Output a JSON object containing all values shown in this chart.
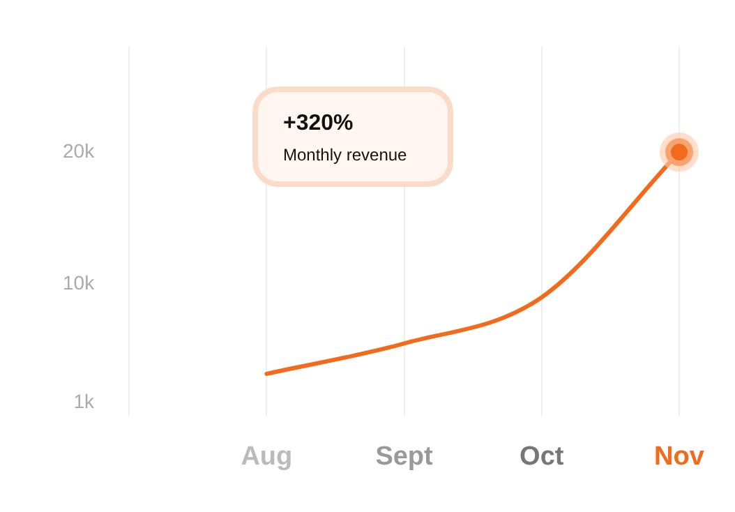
{
  "chart_data": {
    "type": "line",
    "categories": [
      null,
      "Aug",
      "Sept",
      "Oct",
      "Nov"
    ],
    "series": [
      {
        "color": "#f26a1b",
        "values": [
          null,
          3200,
          5500,
          9000,
          20000
        ]
      }
    ],
    "ylim": [
      0,
      28000
    ],
    "yticks": [
      {
        "value": 1000,
        "label": "1k"
      },
      {
        "value": 10000,
        "label": "10k"
      },
      {
        "value": 20000,
        "label": "20k"
      }
    ],
    "grid": "x",
    "legend": false,
    "line_style": "solid",
    "annotations": [
      "+320%",
      "Monthly revenue"
    ]
  }
}
